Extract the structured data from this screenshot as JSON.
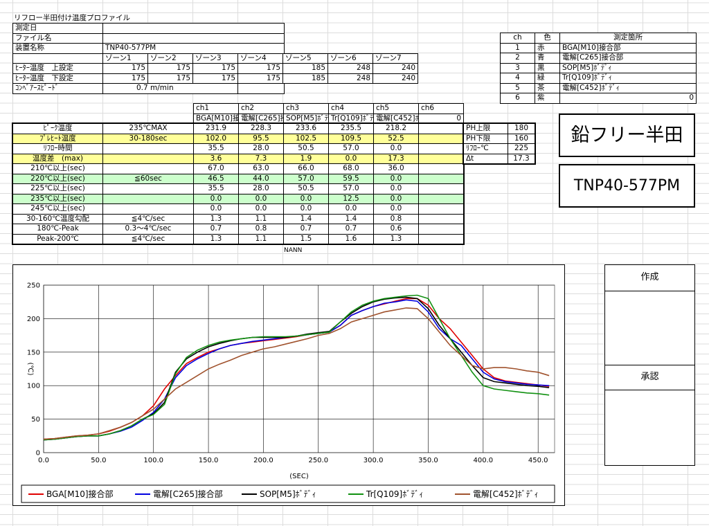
{
  "title": "リフロー半田付け温度プロファイル",
  "info": {
    "rows": [
      {
        "label": "測定日"
      },
      {
        "label": "ファイル名"
      },
      {
        "label": "装置名称",
        "value": "TNP40-577PM"
      }
    ]
  },
  "zones": {
    "headers": [
      "ゾーン1",
      "ゾーン2",
      "ゾーン3",
      "ゾーン4",
      "ゾーン5",
      "ゾーン6",
      "ゾーン7"
    ],
    "rows": [
      {
        "label": "ﾋｰﾀｰ温度　上設定",
        "values": [
          175,
          175,
          175,
          175,
          185,
          248,
          240
        ]
      },
      {
        "label": "ﾋｰﾀｰ温度　下設定",
        "values": [
          175,
          175,
          175,
          175,
          185,
          248,
          240
        ]
      }
    ],
    "conveyor": {
      "label": "ｺﾝﾍﾞｱｰｽﾋﾟｰﾄﾞ",
      "value": "0.7 m/min"
    }
  },
  "channels": {
    "headers": [
      "ch",
      "色",
      "測定箇所"
    ],
    "rows": [
      [
        1,
        "赤",
        "BGA[M10]接合部"
      ],
      [
        2,
        "青",
        "電解[C265]接合部"
      ],
      [
        3,
        "黒",
        "SOP[M5]ﾎﾞﾃﾞｨ"
      ],
      [
        4,
        "緑",
        "Tr[Q109]ﾎﾞﾃﾞｨ"
      ],
      [
        5,
        "茶",
        "電解[C452]ﾎﾞﾃﾞｨ"
      ],
      [
        6,
        "紫",
        0
      ]
    ]
  },
  "badges": [
    "鉛フリー半田",
    "TNP40-577PM"
  ],
  "results": {
    "channels": [
      "ch1",
      "ch2",
      "ch3",
      "ch4",
      "ch5",
      "ch6"
    ],
    "names": [
      "BGA[M10]接合部",
      "電解[C265]接合部",
      "SOP[M5]ﾎﾞﾃﾞｨ",
      "Tr[Q109]ﾎﾞﾃﾞｨ",
      "電解[C452]ﾎﾞﾃﾞｨ",
      0
    ],
    "rows": [
      {
        "label": "ﾋﾟｰｸ温度",
        "spec": "235℃MAX",
        "values": [
          "231.9",
          "228.3",
          "233.6",
          "235.5",
          "218.2"
        ]
      },
      {
        "label": "ﾌﾟﾚﾋｰﾄ温度",
        "spec": "30-180sec",
        "values": [
          "102.0",
          "95.5",
          "102.5",
          "109.5",
          "52.5"
        ],
        "color": "#ffff99"
      },
      {
        "label": "ﾘﾌﾛｰ時間",
        "values": [
          "35.5",
          "28.0",
          "50.5",
          "57.0",
          "0.0"
        ]
      },
      {
        "label": "温度差　(max)",
        "values": [
          "3.6",
          "7.3",
          "1.9",
          "0.0",
          "17.3"
        ],
        "color": "#ffff99"
      },
      {
        "label": "210℃以上(sec)",
        "values": [
          "67.0",
          "63.0",
          "66.0",
          "68.0",
          "36.0"
        ]
      },
      {
        "label": "220℃以上(sec)",
        "spec": "≦60sec",
        "values": [
          "46.5",
          "44.0",
          "57.0",
          "59.5",
          "0.0"
        ],
        "color": "#ccffcc"
      },
      {
        "label": "225℃以上(sec)",
        "values": [
          "35.5",
          "28.0",
          "50.5",
          "57.0",
          "0.0"
        ]
      },
      {
        "label": "235℃以上(sec)",
        "values": [
          "0.0",
          "0.0",
          "0.0",
          "12.5",
          "0.0"
        ],
        "color": "#ccffcc"
      },
      {
        "label": "245℃以上(sec)",
        "values": [
          "0.0",
          "0.0",
          "0.0",
          "0.0",
          "0.0"
        ]
      },
      {
        "label": "30-160℃温度勾配",
        "spec": "≦4℃/sec",
        "values": [
          "1.3",
          "1.1",
          "1.4",
          "1.4",
          "0.8"
        ]
      },
      {
        "label": "180℃-Peak",
        "spec": "0.3～4℃/sec",
        "values": [
          "0.7",
          "0.8",
          "0.7",
          "0.7",
          "0.6"
        ]
      },
      {
        "label": "Peak-200℃",
        "spec": "≦4℃/sec",
        "values": [
          "1.3",
          "1.1",
          "1.5",
          "1.6",
          "1.3"
        ]
      }
    ]
  },
  "limits": {
    "rows": [
      [
        "PH上限",
        180
      ],
      [
        "PH下限",
        160
      ],
      [
        "ﾘﾌﾛｰ℃",
        225
      ],
      [
        "Δt",
        17.3
      ]
    ]
  },
  "note": "NANN",
  "approval": {
    "made": "作成",
    "approved": "承認"
  },
  "chart_data": {
    "type": "line",
    "x_label": "(SEC)",
    "y_label": "(℃)",
    "x": [
      0,
      10,
      20,
      30,
      40,
      50,
      60,
      70,
      80,
      90,
      100,
      110,
      120,
      130,
      140,
      150,
      160,
      170,
      180,
      190,
      200,
      210,
      220,
      230,
      240,
      250,
      260,
      270,
      280,
      290,
      300,
      310,
      320,
      330,
      340,
      350,
      360,
      370,
      380,
      390,
      400,
      410,
      420,
      430,
      440,
      450,
      460
    ],
    "series": [
      {
        "name": "BGA[M10]接合部",
        "color": "#e00000",
        "values": [
          20,
          21,
          23,
          25,
          26,
          28,
          32,
          38,
          45,
          55,
          70,
          95,
          115,
          133,
          142,
          150,
          155,
          160,
          163,
          165,
          167,
          169,
          171,
          173,
          176,
          178,
          180,
          190,
          205,
          212,
          218,
          222,
          226,
          230,
          230,
          220,
          200,
          185,
          165,
          145,
          125,
          112,
          107,
          105,
          103,
          101,
          99
        ]
      },
      {
        "name": "電解[C265]接合部",
        "color": "#0000e0",
        "values": [
          19,
          20,
          22,
          24,
          25,
          25,
          28,
          32,
          38,
          48,
          60,
          80,
          112,
          130,
          140,
          148,
          155,
          160,
          163,
          166,
          168,
          170,
          172,
          174,
          176,
          178,
          180,
          190,
          205,
          212,
          218,
          223,
          225,
          228,
          226,
          210,
          185,
          170,
          160,
          140,
          120,
          110,
          106,
          104,
          102,
          101,
          100
        ]
      },
      {
        "name": "SOP[M5]ﾎﾞﾃﾞｨ",
        "color": "#000000",
        "values": [
          19,
          20,
          22,
          24,
          25,
          25,
          28,
          33,
          40,
          50,
          58,
          75,
          120,
          140,
          150,
          158,
          163,
          167,
          170,
          172,
          172,
          172,
          172,
          174,
          177,
          179,
          181,
          195,
          208,
          218,
          225,
          229,
          231,
          232,
          230,
          215,
          190,
          170,
          150,
          130,
          112,
          106,
          104,
          102,
          100,
          99,
          97
        ]
      },
      {
        "name": "Tr[Q109]ﾎﾞﾃﾞｨ",
        "color": "#109010",
        "values": [
          19,
          20,
          22,
          24,
          25,
          25,
          28,
          33,
          40,
          50,
          57,
          72,
          118,
          142,
          153,
          160,
          165,
          168,
          170,
          172,
          173,
          173,
          173,
          174,
          176,
          178,
          180,
          195,
          210,
          220,
          226,
          230,
          232,
          234,
          235,
          230,
          200,
          170,
          145,
          120,
          100,
          95,
          93,
          91,
          89,
          88,
          86
        ]
      },
      {
        "name": "電解[C452]ﾎﾞﾃﾞｨ",
        "color": "#a0522d",
        "values": [
          20,
          21,
          23,
          25,
          26,
          28,
          33,
          38,
          45,
          55,
          65,
          80,
          95,
          105,
          115,
          125,
          132,
          138,
          145,
          150,
          155,
          158,
          162,
          166,
          170,
          175,
          178,
          185,
          195,
          200,
          205,
          210,
          213,
          216,
          215,
          200,
          180,
          160,
          145,
          130,
          125,
          127,
          127,
          125,
          122,
          120,
          115
        ]
      }
    ],
    "xlim": [
      0,
      465
    ],
    "ylim": [
      0,
      250
    ],
    "xticks": [
      {
        "value": 0,
        "label": "0.0"
      },
      {
        "value": 50,
        "label": "50.0"
      },
      {
        "value": 100,
        "label": "100.0"
      },
      {
        "value": 150,
        "label": "150.0"
      },
      {
        "value": 200,
        "label": "200.0"
      },
      {
        "value": 250,
        "label": "250.0"
      },
      {
        "value": 300,
        "label": "300.0"
      },
      {
        "value": 350,
        "label": "350.0"
      },
      {
        "value": 400,
        "label": "400.0"
      },
      {
        "value": 450,
        "label": "450.0"
      }
    ],
    "yticks": [
      0,
      50,
      100,
      150,
      200,
      250
    ],
    "grid": true,
    "legend": "bottom"
  }
}
